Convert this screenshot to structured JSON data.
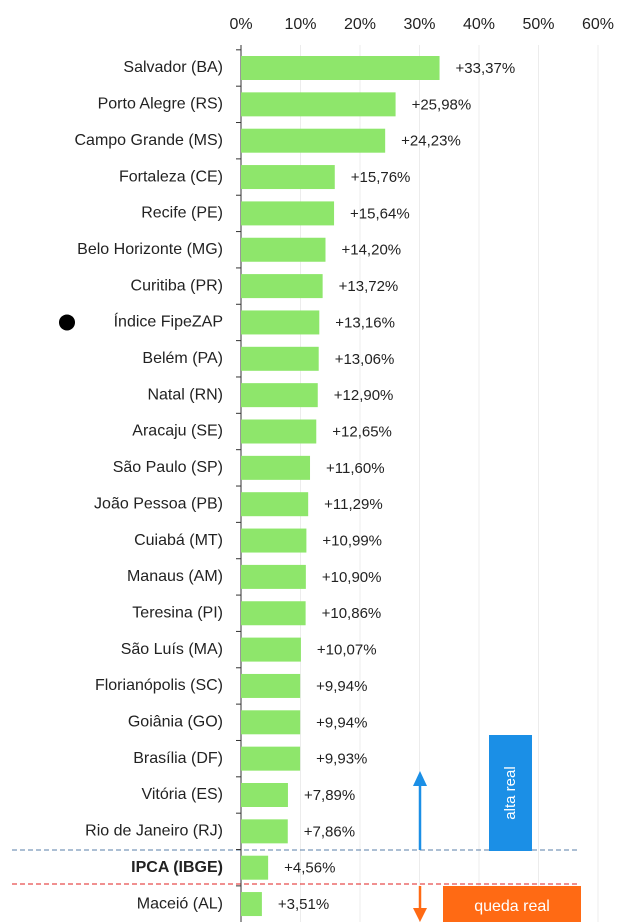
{
  "chart_data": {
    "type": "bar",
    "orientation": "horizontal",
    "categories": [
      "Salvador (BA)",
      "Porto Alegre (RS)",
      "Campo Grande (MS)",
      "Fortaleza (CE)",
      "Recife (PE)",
      "Belo Horizonte (MG)",
      "Curitiba (PR)",
      "Índice FipeZAP",
      "Belém (PA)",
      "Natal (RN)",
      "Aracaju (SE)",
      "São Paulo (SP)",
      "João Pessoa (PB)",
      "Cuiabá (MT)",
      "Manaus (AM)",
      "Teresina (PI)",
      "São Luís (MA)",
      "Florianópolis (SC)",
      "Goiânia (GO)",
      "Brasília (DF)",
      "Vitória (ES)",
      "Rio de Janeiro (RJ)",
      "IPCA (IBGE)",
      "Maceió (AL)"
    ],
    "values": [
      33.37,
      25.98,
      24.23,
      15.76,
      15.64,
      14.2,
      13.72,
      13.16,
      13.06,
      12.9,
      12.65,
      11.6,
      11.29,
      10.99,
      10.9,
      10.86,
      10.07,
      9.94,
      9.94,
      9.93,
      7.89,
      7.86,
      4.56,
      3.51
    ],
    "value_labels": [
      "+33,37%",
      "+25,98%",
      "+24,23%",
      "+15,76%",
      "+15,64%",
      "+14,20%",
      "+13,72%",
      "+13,16%",
      "+13,06%",
      "+12,90%",
      "+12,65%",
      "+11,60%",
      "+11,29%",
      "+10,99%",
      "+10,90%",
      "+10,86%",
      "+10,07%",
      "+9,94%",
      "+9,94%",
      "+9,93%",
      "+7,89%",
      "+7,86%",
      "+4,56%",
      "+3,51%"
    ],
    "color": "#8ee66b",
    "xlim": [
      0,
      60
    ],
    "xticks": [
      {
        "value": 0,
        "label": "0%"
      },
      {
        "value": 10,
        "label": "10%"
      },
      {
        "value": 20,
        "label": "20%"
      },
      {
        "value": 30,
        "label": "30%"
      },
      {
        "value": 40,
        "label": "40%"
      },
      {
        "value": 50,
        "label": "50%"
      },
      {
        "value": 60,
        "label": "60%"
      }
    ],
    "grid": true,
    "annotations": [
      "alta real",
      "queda real"
    ]
  }
}
